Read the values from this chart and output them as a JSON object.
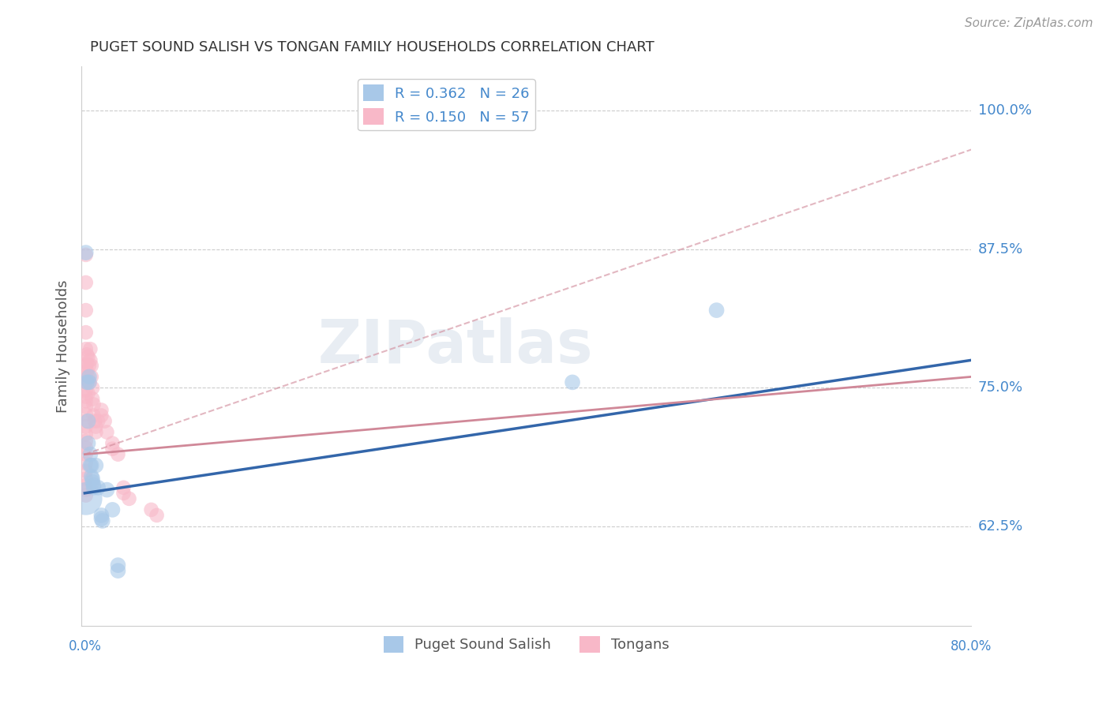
{
  "title": "PUGET SOUND SALISH VS TONGAN FAMILY HOUSEHOLDS CORRELATION CHART",
  "source": "Source: ZipAtlas.com",
  "ylabel": "Family Households",
  "y_tick_labels": [
    "62.5%",
    "75.0%",
    "87.5%",
    "100.0%"
  ],
  "y_tick_values": [
    0.625,
    0.75,
    0.875,
    1.0
  ],
  "x_min": -0.003,
  "x_max": 0.8,
  "y_min": 0.535,
  "y_max": 1.04,
  "legend_label_1": "R = 0.362   N = 26",
  "legend_label_2": "R = 0.150   N = 57",
  "legend_label_bottom_1": "Puget Sound Salish",
  "legend_label_bottom_2": "Tongans",
  "blue_fill": "#a8c8e8",
  "pink_fill": "#f8b8c8",
  "blue_line_color": "#3366aa",
  "pink_line_color": "#d08898",
  "blue_scatter": [
    [
      0.001,
      0.872
    ],
    [
      0.002,
      0.755
    ],
    [
      0.003,
      0.72
    ],
    [
      0.003,
      0.7
    ],
    [
      0.004,
      0.76
    ],
    [
      0.004,
      0.755
    ],
    [
      0.005,
      0.69
    ],
    [
      0.005,
      0.68
    ],
    [
      0.006,
      0.68
    ],
    [
      0.006,
      0.67
    ],
    [
      0.007,
      0.668
    ],
    [
      0.007,
      0.665
    ],
    [
      0.008,
      0.66
    ],
    [
      0.008,
      0.662
    ],
    [
      0.01,
      0.68
    ],
    [
      0.012,
      0.66
    ],
    [
      0.015,
      0.635
    ],
    [
      0.015,
      0.632
    ],
    [
      0.016,
      0.63
    ],
    [
      0.02,
      0.658
    ],
    [
      0.025,
      0.64
    ],
    [
      0.03,
      0.59
    ],
    [
      0.03,
      0.585
    ],
    [
      0.001,
      0.65
    ],
    [
      0.44,
      0.755
    ],
    [
      0.57,
      0.82
    ]
  ],
  "blue_scatter_sizes": [
    200,
    200,
    200,
    200,
    200,
    200,
    200,
    200,
    200,
    200,
    200,
    200,
    200,
    200,
    200,
    200,
    200,
    200,
    200,
    200,
    200,
    200,
    200,
    900,
    200,
    200
  ],
  "pink_scatter": [
    [
      0.001,
      0.87
    ],
    [
      0.001,
      0.845
    ],
    [
      0.001,
      0.82
    ],
    [
      0.001,
      0.8
    ],
    [
      0.001,
      0.785
    ],
    [
      0.001,
      0.77
    ],
    [
      0.001,
      0.76
    ],
    [
      0.001,
      0.755
    ],
    [
      0.001,
      0.748
    ],
    [
      0.001,
      0.742
    ],
    [
      0.001,
      0.738
    ],
    [
      0.001,
      0.733
    ],
    [
      0.001,
      0.726
    ],
    [
      0.001,
      0.72
    ],
    [
      0.001,
      0.715
    ],
    [
      0.001,
      0.708
    ],
    [
      0.001,
      0.702
    ],
    [
      0.001,
      0.696
    ],
    [
      0.001,
      0.69
    ],
    [
      0.001,
      0.682
    ],
    [
      0.001,
      0.675
    ],
    [
      0.002,
      0.78
    ],
    [
      0.002,
      0.772
    ],
    [
      0.002,
      0.765
    ],
    [
      0.003,
      0.778
    ],
    [
      0.003,
      0.76
    ],
    [
      0.003,
      0.745
    ],
    [
      0.004,
      0.77
    ],
    [
      0.004,
      0.755
    ],
    [
      0.005,
      0.785
    ],
    [
      0.005,
      0.775
    ],
    [
      0.006,
      0.77
    ],
    [
      0.006,
      0.76
    ],
    [
      0.007,
      0.75
    ],
    [
      0.007,
      0.74
    ],
    [
      0.008,
      0.735
    ],
    [
      0.008,
      0.725
    ],
    [
      0.009,
      0.72
    ],
    [
      0.01,
      0.715
    ],
    [
      0.01,
      0.71
    ],
    [
      0.012,
      0.72
    ],
    [
      0.015,
      0.73
    ],
    [
      0.015,
      0.725
    ],
    [
      0.018,
      0.72
    ],
    [
      0.02,
      0.71
    ],
    [
      0.025,
      0.7
    ],
    [
      0.025,
      0.695
    ],
    [
      0.03,
      0.69
    ],
    [
      0.035,
      0.66
    ],
    [
      0.035,
      0.655
    ],
    [
      0.04,
      0.65
    ],
    [
      0.06,
      0.64
    ],
    [
      0.065,
      0.635
    ],
    [
      0.001,
      0.668
    ],
    [
      0.001,
      0.662
    ],
    [
      0.001,
      0.658
    ],
    [
      0.001,
      0.653
    ]
  ],
  "blue_line_x": [
    0.0,
    0.8
  ],
  "blue_line_y": [
    0.655,
    0.775
  ],
  "pink_line_x": [
    0.0,
    0.8
  ],
  "pink_line_y": [
    0.69,
    0.76
  ],
  "pink_dashed_line_x": [
    0.0,
    0.8
  ],
  "pink_dashed_line_y": [
    0.69,
    0.965
  ],
  "watermark": "ZIPatlas",
  "background_color": "#ffffff",
  "grid_color": "#cccccc",
  "title_color": "#333333",
  "axis_label_color": "#4488cc"
}
